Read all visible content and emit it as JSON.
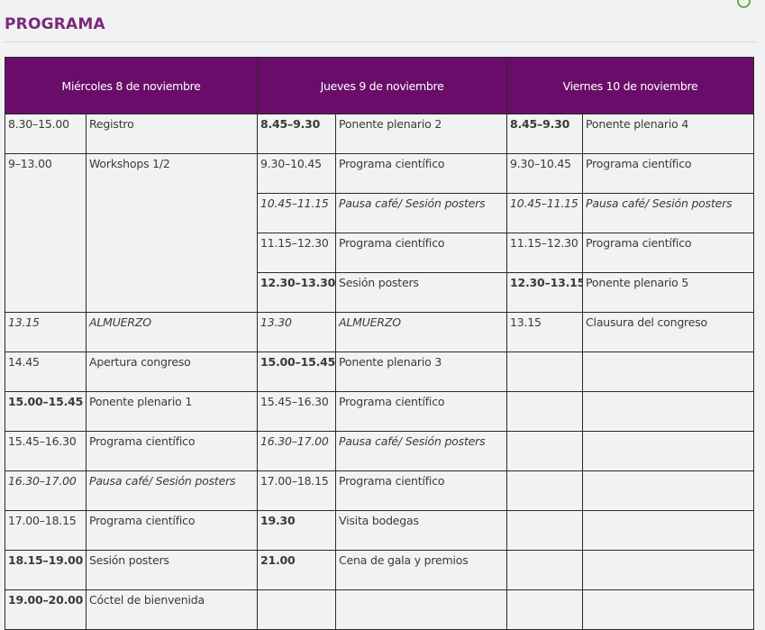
{
  "page": {
    "title": "PROGRAMA"
  },
  "days": [
    {
      "header": "Miércoles 8 de noviembre"
    },
    {
      "header": "Jueves 9 de noviembre"
    },
    {
      "header": "Viernes 10 de noviembre"
    }
  ],
  "wed": [
    {
      "time": "8.30–15.00",
      "event": "Registro"
    },
    {
      "time": "9–13.00",
      "event": "Workshops 1/2"
    },
    {
      "time": "13.15",
      "event": "ALMUERZO"
    },
    {
      "time": "14.45",
      "event": "Apertura congreso"
    },
    {
      "time": "15.00–15.45",
      "event": "Ponente plenario 1"
    },
    {
      "time": "15.45–16.30",
      "event": "Programa científico"
    },
    {
      "time": "16.30–17.00",
      "event": "Pausa café/ Sesión posters"
    },
    {
      "time": "17.00–18.15",
      "event": "Programa científico"
    },
    {
      "time": "18.15–19.00",
      "event": "Sesión posters"
    },
    {
      "time": "19.00–20.00",
      "event": "Cóctel de bienvenida"
    }
  ],
  "thu": [
    {
      "time": "8.45–9.30",
      "event": "Ponente plenario 2"
    },
    {
      "time": "9.30–10.45",
      "event": "Programa científico"
    },
    {
      "time": "10.45–11.15",
      "event": "Pausa café/ Sesión posters"
    },
    {
      "time": "11.15–12.30",
      "event": "Programa científico"
    },
    {
      "time": "12.30–13.30",
      "event": "Sesión posters"
    },
    {
      "time": "13.30",
      "event": "ALMUERZO"
    },
    {
      "time": "15.00–15.45",
      "event": "Ponente plenario 3"
    },
    {
      "time": "15.45–16.30",
      "event": "Programa científico"
    },
    {
      "time": "16.30–17.00",
      "event": "Pausa café/ Sesión posters"
    },
    {
      "time": "17.00–18.15",
      "event": "Programa científico"
    },
    {
      "time": "19.30",
      "event": "Visita bodegas"
    },
    {
      "time": "21.00",
      "event": "Cena de gala y premios"
    }
  ],
  "fri": [
    {
      "time": "8.45–9.30",
      "event": "Ponente plenario 4"
    },
    {
      "time": "9.30–10.45",
      "event": "Programa científico"
    },
    {
      "time": "10.45–11.15",
      "event": "Pausa café/ Sesión posters"
    },
    {
      "time": "11.15–12.30",
      "event": "Programa científico"
    },
    {
      "time": "12.30–13.15",
      "event": "Ponente plenario 5"
    },
    {
      "time": "13.15",
      "event": "Clausura del congreso"
    }
  ],
  "colors": {
    "header_bg": "#6a0d6a",
    "plenary": "#6a0d6a",
    "posters": "#b2a51d",
    "social": "#3a8fc4",
    "break": "#8c8c8c",
    "title": "#7a2a7c"
  }
}
